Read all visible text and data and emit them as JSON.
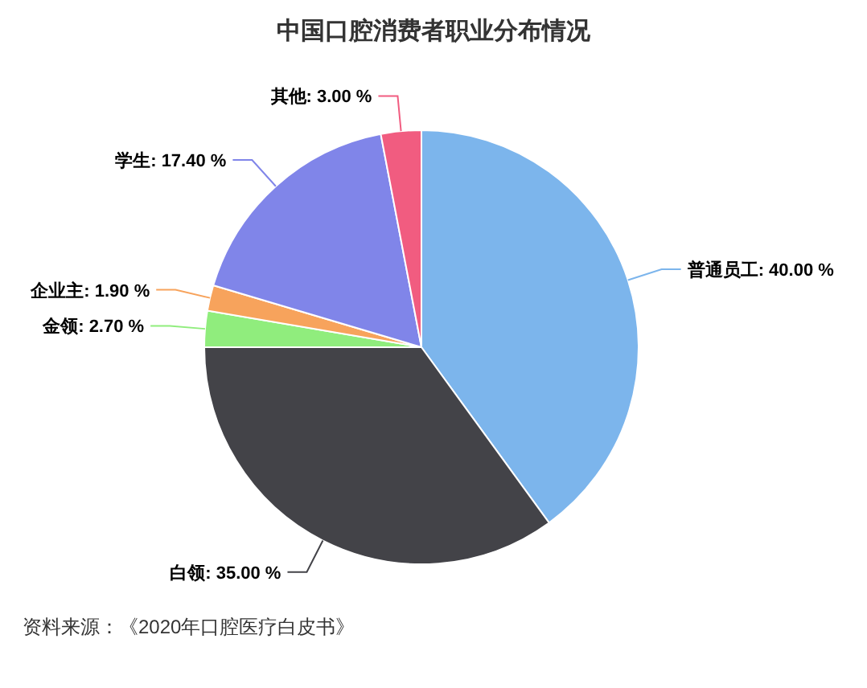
{
  "chart_data": {
    "type": "pie",
    "title": "中国口腔消费者职业分布情况",
    "categories": [
      "普通员工",
      "白领",
      "金领",
      "企业主",
      "学生",
      "其他"
    ],
    "values": [
      40.0,
      35.0,
      2.7,
      1.9,
      17.4,
      3.0
    ],
    "value_labels": [
      "40.00 %",
      "35.00 %",
      "2.70 %",
      "1.90 %",
      "17.40 %",
      "3.00 %"
    ],
    "colors": [
      "#7cb5ec",
      "#434348",
      "#90ed7d",
      "#f7a35c",
      "#8085e9",
      "#f15c80"
    ],
    "annotations": [
      "资料来源：《2020年口腔医疗白皮书》"
    ]
  }
}
